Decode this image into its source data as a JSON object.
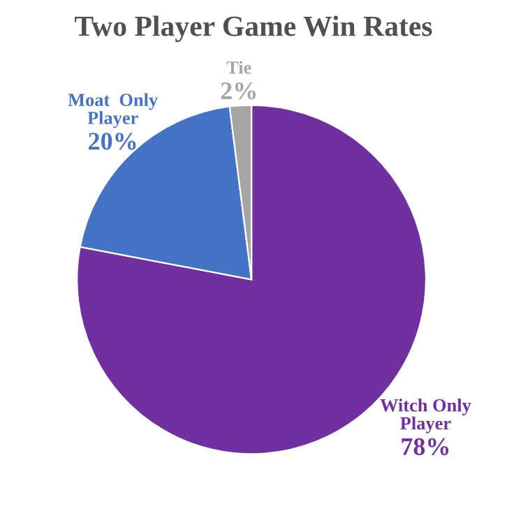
{
  "chart_data": {
    "type": "pie",
    "title": "Two Player Game Win Rates",
    "categories": [
      "Witch Only\nPlayer",
      "Moat  Only\nPlayer",
      "Tie"
    ],
    "values": [
      78,
      20,
      2
    ],
    "colors": [
      "#7030a0",
      "#4472c4",
      "#a5a5a5"
    ],
    "value_labels": [
      "78%",
      "20%",
      "2%"
    ],
    "legend": false
  }
}
